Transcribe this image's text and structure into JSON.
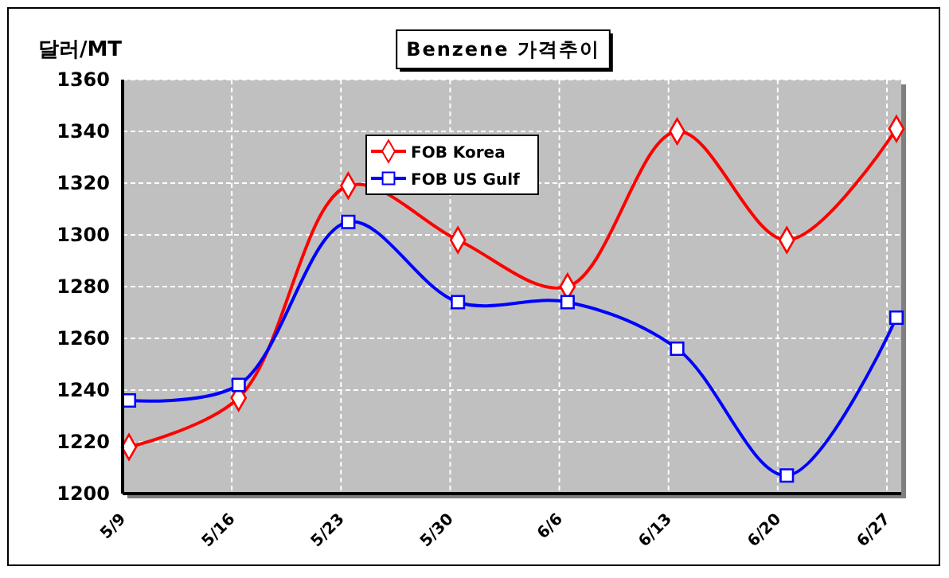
{
  "chart_data": {
    "type": "line",
    "title": "Benzene 가격추이",
    "ylabel": "달러/MT",
    "categories": [
      "5/9",
      "5/16",
      "5/23",
      "5/30",
      "6/6",
      "6/13",
      "6/20",
      "6/27"
    ],
    "series": [
      {
        "name": "FOB Korea",
        "color": "#ff0000",
        "marker": "diamond",
        "values": [
          1218,
          1237,
          1319,
          1298,
          1280,
          1340,
          1298,
          1341
        ]
      },
      {
        "name": "FOB US Gulf",
        "color": "#0000ff",
        "marker": "square",
        "values": [
          1236,
          1242,
          1305,
          1274,
          1274,
          1256,
          1207,
          1268
        ]
      }
    ],
    "ylim": [
      1200,
      1360
    ],
    "yticks": [
      1200,
      1220,
      1240,
      1260,
      1280,
      1300,
      1320,
      1340,
      1360
    ],
    "grid": true,
    "legend": "top left",
    "line_style": "solid"
  }
}
